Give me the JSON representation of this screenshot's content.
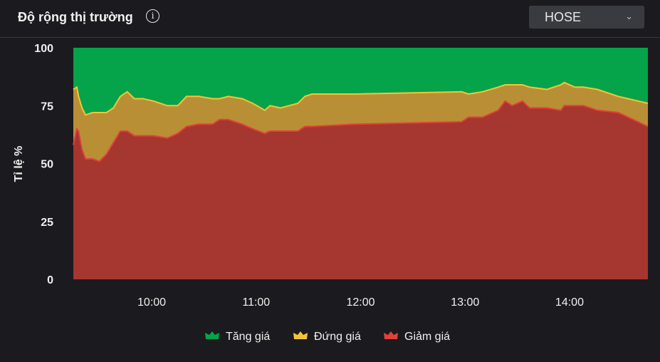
{
  "header": {
    "title": "Độ rộng thị trường",
    "info_icon": "info-icon",
    "market_select": {
      "selected": "HOSE",
      "icon": "chevron-down-icon"
    }
  },
  "colors": {
    "tang": "#05a34a",
    "dung_fill": "#b98f36",
    "dung_line": "#f2c43a",
    "giam_fill": "#a63630",
    "giam_line": "#e0413a"
  },
  "chart_data": {
    "type": "area",
    "stacked": true,
    "ylabel": "Tỉ lệ %",
    "ylim": [
      0,
      100
    ],
    "yticks": [
      "0",
      "25",
      "50",
      "75",
      "100"
    ],
    "xticks": [
      "10:00",
      "11:00",
      "12:00",
      "13:00",
      "14:00"
    ],
    "xlim": [
      "09:15",
      "14:45"
    ],
    "legend_position": "bottom",
    "x": [
      "09:15",
      "09:17",
      "09:18",
      "09:20",
      "09:22",
      "09:26",
      "09:30",
      "09:34",
      "09:38",
      "09:42",
      "09:46",
      "09:50",
      "09:55",
      "10:01",
      "10:09",
      "10:15",
      "10:20",
      "10:27",
      "10:35",
      "10:39",
      "10:44",
      "10:52",
      "10:58",
      "11:05",
      "11:08",
      "11:14",
      "11:24",
      "11:28",
      "11:32",
      "11:57",
      "12:58",
      "13:02",
      "13:10",
      "13:19",
      "13:23",
      "13:27",
      "13:33",
      "13:37",
      "13:47",
      "13:55",
      "13:57",
      "14:03",
      "14:08",
      "14:16",
      "14:28",
      "14:45"
    ],
    "series": [
      {
        "name": "Giảm giá",
        "values": [
          58,
          65,
          64,
          56,
          52,
          52,
          51,
          54,
          59,
          64,
          64,
          62,
          62,
          62,
          61,
          63,
          66,
          67,
          67,
          69,
          69,
          67,
          65,
          63,
          64,
          64,
          64,
          66,
          66,
          67,
          68,
          70,
          70,
          73,
          77,
          75,
          77,
          74,
          74,
          73,
          75,
          75,
          75,
          73,
          72,
          66
        ]
      },
      {
        "name": "Đứng giá",
        "values": [
          24,
          18,
          15,
          18,
          19,
          20,
          21,
          18,
          15,
          15,
          17,
          16,
          16,
          15,
          14,
          12,
          13,
          12,
          11,
          9,
          10,
          11,
          11,
          10,
          11,
          10,
          12,
          13,
          14,
          13,
          13,
          10,
          11,
          10,
          7,
          9,
          7,
          9,
          8,
          11,
          10,
          8,
          8,
          9,
          7,
          10
        ]
      },
      {
        "name": "Tăng giá",
        "values": [
          18,
          17,
          21,
          26,
          29,
          28,
          28,
          28,
          26,
          21,
          19,
          22,
          22,
          23,
          25,
          25,
          21,
          21,
          22,
          22,
          21,
          22,
          24,
          27,
          25,
          26,
          24,
          21,
          20,
          20,
          19,
          20,
          19,
          17,
          16,
          16,
          16,
          17,
          18,
          16,
          15,
          17,
          17,
          18,
          21,
          24
        ]
      }
    ],
    "legend": [
      "Tăng giá",
      "Đứng giá",
      "Giảm giá"
    ]
  }
}
